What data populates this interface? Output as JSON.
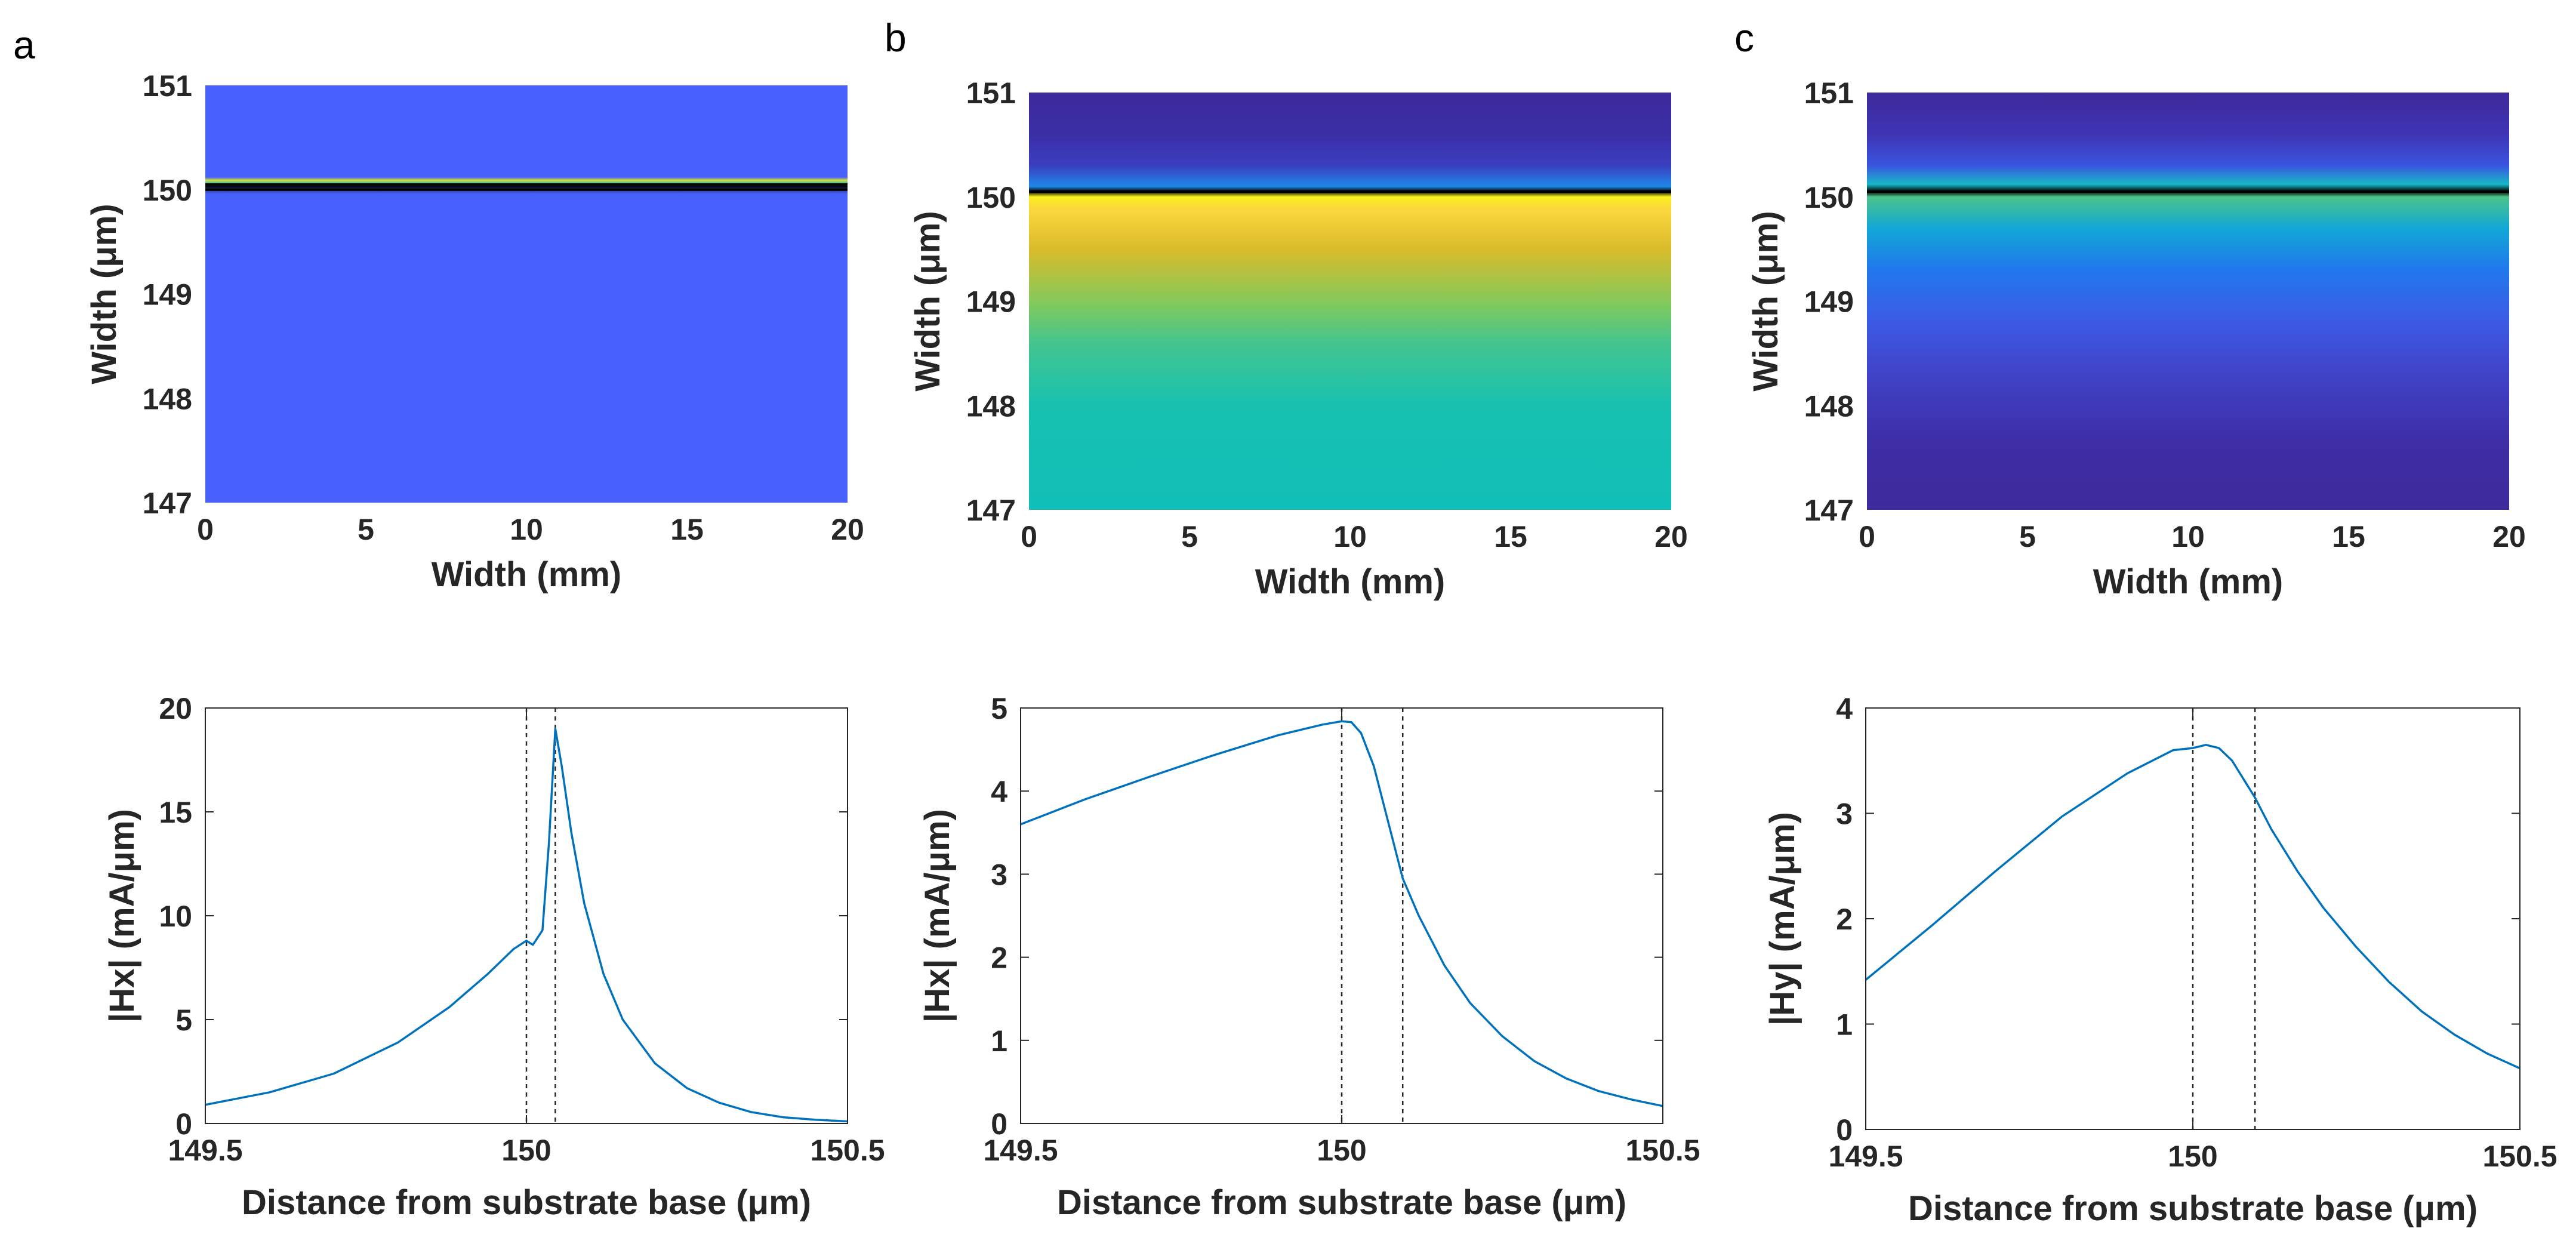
{
  "panel_labels": [
    "a",
    "b",
    "c"
  ],
  "colors": {
    "axis": "#262626",
    "line": "#0072BD",
    "dashed": "#262626",
    "boundary": "#000000"
  },
  "chart_data": [
    {
      "type": "heatmap",
      "panel": "a",
      "xlabel": "Width (mm)",
      "ylabel": "Width (μm)",
      "xlim": [
        0,
        20
      ],
      "ylim": [
        147,
        151
      ],
      "xticks": [
        0,
        5,
        10,
        15,
        20
      ],
      "yticks": [
        147,
        148,
        149,
        150,
        151
      ],
      "colormap": "parula",
      "vertical_profile": [
        {
          "y": 147,
          "color": "#4860fc"
        },
        {
          "y": 149.96,
          "color": "#4860fc"
        },
        {
          "y": 150.0,
          "color": "#2f3a8c"
        },
        {
          "y": 150.03,
          "color": "#000000"
        },
        {
          "y": 150.06,
          "color": "#2ec0b0"
        },
        {
          "y": 150.09,
          "color": "#d6e030"
        },
        {
          "y": 150.12,
          "color": "#4860fc"
        },
        {
          "y": 151,
          "color": "#4860fc"
        }
      ],
      "boundary_lines": [
        150.0,
        150.05
      ]
    },
    {
      "type": "heatmap",
      "panel": "b",
      "xlabel": "Width (mm)",
      "ylabel": "Width (μm)",
      "xlim": [
        0,
        20
      ],
      "ylim": [
        147,
        151
      ],
      "xticks": [
        0,
        5,
        10,
        15,
        20
      ],
      "yticks": [
        147,
        148,
        149,
        150,
        151
      ],
      "colormap": "parula",
      "vertical_profile": [
        {
          "y": 147,
          "color": "#10bfb8"
        },
        {
          "y": 148,
          "color": "#18c1b0"
        },
        {
          "y": 148.6,
          "color": "#44c58f"
        },
        {
          "y": 149.0,
          "color": "#86c95a"
        },
        {
          "y": 149.5,
          "color": "#dabb2b"
        },
        {
          "y": 149.9,
          "color": "#fdd93c"
        },
        {
          "y": 150.0,
          "color": "#fbf11e"
        },
        {
          "y": 150.05,
          "color": "#000000"
        },
        {
          "y": 150.1,
          "color": "#1f88e8"
        },
        {
          "y": 150.3,
          "color": "#3a3fc0"
        },
        {
          "y": 150.6,
          "color": "#3a2ea5"
        },
        {
          "y": 151,
          "color": "#3e2a9b"
        }
      ],
      "boundary_lines": [
        150.05
      ]
    },
    {
      "type": "heatmap",
      "panel": "c",
      "xlabel": "Width (mm)",
      "ylabel": "Width (μm)",
      "xlim": [
        0,
        20
      ],
      "ylim": [
        147,
        151
      ],
      "xticks": [
        0,
        5,
        10,
        15,
        20
      ],
      "yticks": [
        147,
        148,
        149,
        150,
        151
      ],
      "colormap": "parula",
      "vertical_profile": [
        {
          "y": 147,
          "color": "#3e2a9b"
        },
        {
          "y": 147.7,
          "color": "#3e2fa8"
        },
        {
          "y": 148.3,
          "color": "#4043c8"
        },
        {
          "y": 148.8,
          "color": "#3d5ae4"
        },
        {
          "y": 149.3,
          "color": "#2178ec"
        },
        {
          "y": 149.7,
          "color": "#12a7d6"
        },
        {
          "y": 150.0,
          "color": "#4cc38a"
        },
        {
          "y": 150.05,
          "color": "#000000"
        },
        {
          "y": 150.12,
          "color": "#18b8c8"
        },
        {
          "y": 150.3,
          "color": "#3a55e0"
        },
        {
          "y": 150.6,
          "color": "#3e34b4"
        },
        {
          "y": 151,
          "color": "#3e2a9b"
        }
      ],
      "boundary_lines": [
        150.05
      ]
    },
    {
      "type": "line",
      "panel": "a",
      "xlabel": "Distance from substrate base (μm)",
      "ylabel": "|Hx| (mA/μm)",
      "xlim": [
        149.5,
        150.5
      ],
      "ylim": [
        0,
        20
      ],
      "xticks": [
        149.5,
        150,
        150.5
      ],
      "xtick_labels": [
        "149.5",
        "150",
        "150.5"
      ],
      "yticks": [
        0,
        5,
        10,
        15,
        20
      ],
      "dashed_lines": [
        150.0,
        150.045
      ],
      "series": [
        {
          "name": "|Hx|",
          "x": [
            149.5,
            149.6,
            149.7,
            149.8,
            149.88,
            149.94,
            149.98,
            150.0,
            150.01,
            150.025,
            150.035,
            150.045,
            150.055,
            150.07,
            150.09,
            150.12,
            150.15,
            150.2,
            150.25,
            150.3,
            150.35,
            150.4,
            150.45,
            150.5
          ],
          "y": [
            0.9,
            1.5,
            2.4,
            3.9,
            5.6,
            7.2,
            8.4,
            8.8,
            8.6,
            9.3,
            13.5,
            19.0,
            17.2,
            14.0,
            10.6,
            7.2,
            5.0,
            2.9,
            1.7,
            1.0,
            0.55,
            0.3,
            0.18,
            0.1
          ]
        }
      ]
    },
    {
      "type": "line",
      "panel": "b",
      "xlabel": "Distance from substrate base (μm)",
      "ylabel": "|Hx| (mA/μm)",
      "xlim": [
        149.5,
        150.5
      ],
      "ylim": [
        0,
        5
      ],
      "xticks": [
        149.5,
        150,
        150.5
      ],
      "xtick_labels": [
        "149.5",
        "150",
        "150.5"
      ],
      "yticks": [
        0,
        1,
        2,
        3,
        4,
        5
      ],
      "dashed_lines": [
        150.0,
        150.095
      ],
      "series": [
        {
          "name": "|Hx|",
          "x": [
            149.5,
            149.6,
            149.7,
            149.8,
            149.9,
            149.97,
            150.0,
            150.015,
            150.03,
            150.05,
            150.07,
            150.095,
            150.12,
            150.16,
            150.2,
            150.25,
            150.3,
            150.35,
            150.4,
            150.45,
            150.5
          ],
          "y": [
            3.6,
            3.9,
            4.17,
            4.43,
            4.67,
            4.8,
            4.84,
            4.83,
            4.7,
            4.3,
            3.7,
            2.95,
            2.5,
            1.9,
            1.45,
            1.05,
            0.75,
            0.54,
            0.39,
            0.29,
            0.21
          ]
        }
      ]
    },
    {
      "type": "line",
      "panel": "c",
      "xlabel": "Distance from substrate base (μm)",
      "ylabel": "|Hy| (mA/μm)",
      "xlim": [
        149.5,
        150.5
      ],
      "ylim": [
        0,
        4
      ],
      "xticks": [
        149.5,
        150,
        150.5
      ],
      "xtick_labels": [
        "149.5",
        "150",
        "150.5"
      ],
      "yticks": [
        0,
        1,
        2,
        3,
        4
      ],
      "dashed_lines": [
        150.0,
        150.095
      ],
      "series": [
        {
          "name": "|Hy|",
          "x": [
            149.5,
            149.6,
            149.7,
            149.8,
            149.9,
            149.97,
            150.0,
            150.02,
            150.04,
            150.06,
            150.08,
            150.095,
            150.12,
            150.16,
            150.2,
            150.25,
            150.3,
            150.35,
            150.4,
            150.45,
            150.5
          ],
          "y": [
            1.42,
            1.93,
            2.46,
            2.97,
            3.38,
            3.6,
            3.62,
            3.65,
            3.62,
            3.5,
            3.3,
            3.15,
            2.85,
            2.45,
            2.1,
            1.73,
            1.4,
            1.12,
            0.9,
            0.72,
            0.58
          ]
        }
      ]
    }
  ]
}
